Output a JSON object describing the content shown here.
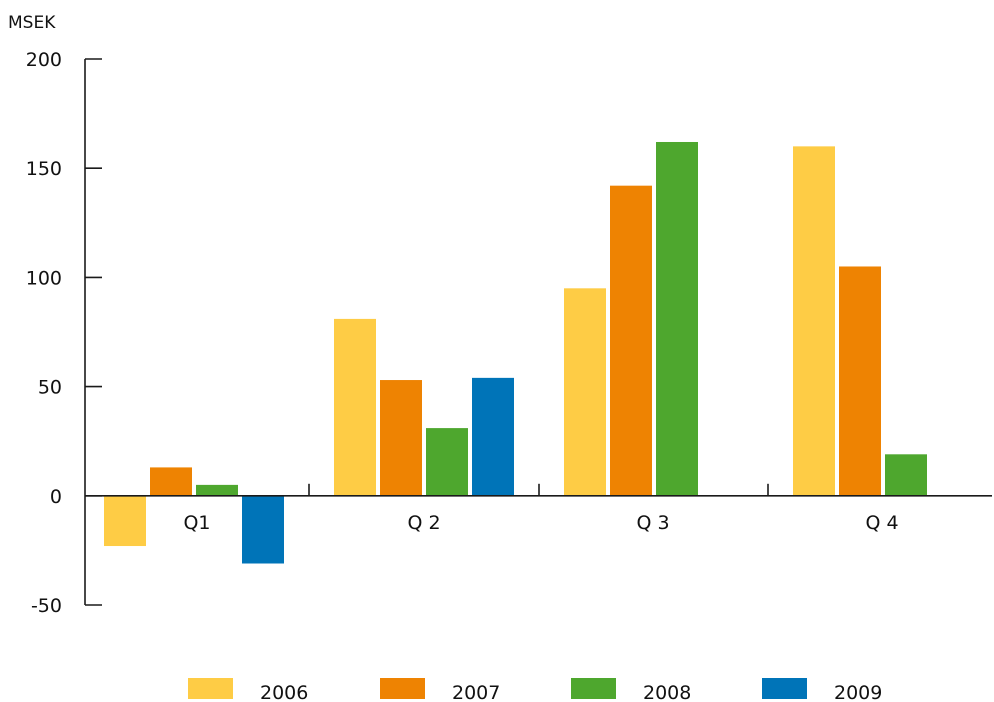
{
  "chart_data": {
    "type": "bar",
    "title": "",
    "unit_label": "MSEK",
    "xlabel": "",
    "ylabel": "",
    "categories": [
      "Q1",
      "Q 2",
      "Q 3",
      "Q 4"
    ],
    "series": [
      {
        "name": "2006",
        "color": "#FECC45",
        "values": [
          -23,
          81,
          95,
          160
        ]
      },
      {
        "name": "2007",
        "color": "#EE8302",
        "values": [
          13,
          53,
          142,
          105
        ]
      },
      {
        "name": "2008",
        "color": "#4EA72E",
        "values": [
          5,
          31,
          162,
          19
        ]
      },
      {
        "name": "2009",
        "color": "#0074B8",
        "values": [
          -31,
          54,
          null,
          null
        ]
      }
    ],
    "ylim": [
      -50,
      200
    ],
    "yticks": [
      -50,
      0,
      50,
      100,
      150,
      200
    ],
    "ytick_labels": [
      "-50",
      "0",
      "50",
      "100",
      "150",
      "200"
    ],
    "grid": false,
    "legend_position": "bottom"
  }
}
